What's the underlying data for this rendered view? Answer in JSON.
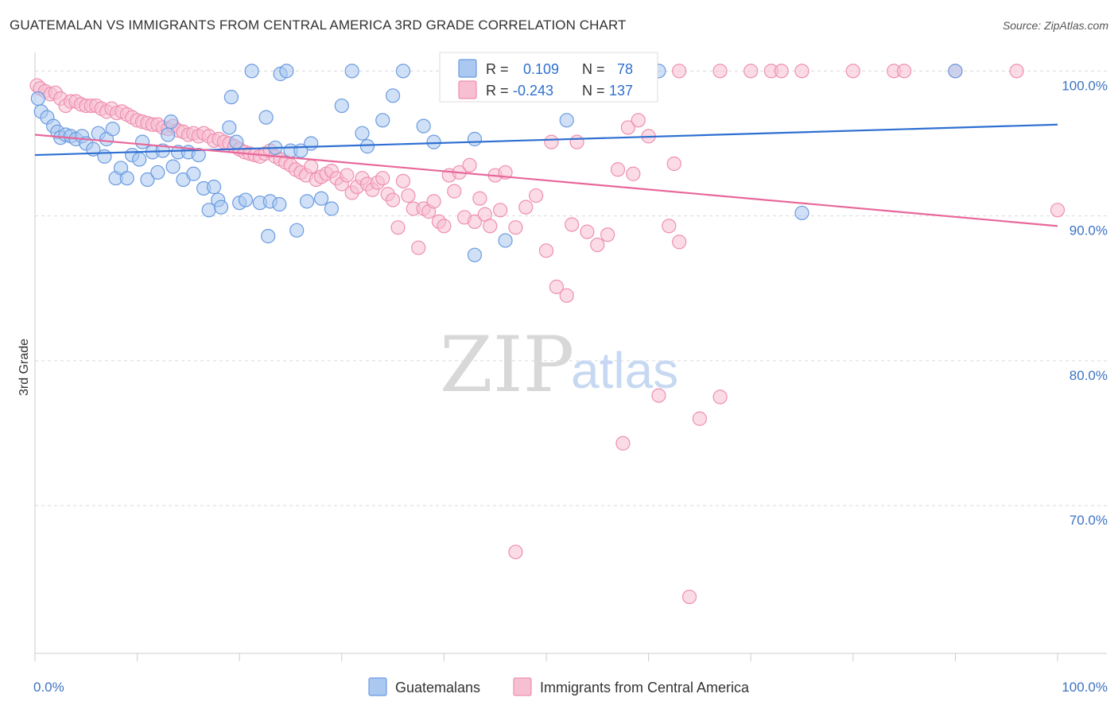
{
  "header": {
    "title": "GUATEMALAN VS IMMIGRANTS FROM CENTRAL AMERICA 3RD GRADE CORRELATION CHART",
    "source": "Source: ZipAtlas.com"
  },
  "watermark": {
    "zip": "ZIP",
    "atlas": "atlas"
  },
  "legend": {
    "rows": [
      {
        "r_label": "R =",
        "r_value": "0.109",
        "n_label": "N =",
        "n_value": "78"
      },
      {
        "r_label": "R =",
        "r_value": "-0.243",
        "n_label": "N =",
        "n_value": "137"
      }
    ]
  },
  "colors": {
    "blue_fill": "#aac8f0",
    "blue_stroke": "#6a9be0",
    "blue_line": "#2e6fd1",
    "pink_fill": "#f7bfd2",
    "pink_stroke": "#ee8fb0",
    "pink_line": "#e8679a",
    "value_text": "#2e6fd1",
    "grid": "#d9d9d9"
  },
  "chart_data": {
    "type": "scatter",
    "ylabel": "3rd Grade",
    "xlabel": "",
    "x_ticks": [
      "0.0%",
      "100.0%"
    ],
    "y_ticks": [
      "100.0%",
      "90.0%",
      "80.0%",
      "70.0%"
    ],
    "xlim": [
      0,
      100
    ],
    "ylim": [
      59.8,
      101.5
    ],
    "series": [
      {
        "name": "Guatemalans",
        "r": 0.109,
        "n": 78,
        "trend": [
          [
            0,
            94.2
          ],
          [
            100,
            96.3
          ]
        ],
        "points": [
          [
            0.3,
            98.1
          ],
          [
            0.6,
            97.2
          ],
          [
            1.2,
            96.8
          ],
          [
            1.8,
            96.2
          ],
          [
            2.2,
            95.8
          ],
          [
            2.5,
            95.4
          ],
          [
            3,
            95.6
          ],
          [
            3.5,
            95.5
          ],
          [
            4,
            95.3
          ],
          [
            4.6,
            95.5
          ],
          [
            5,
            95
          ],
          [
            5.7,
            94.6
          ],
          [
            6.2,
            95.7
          ],
          [
            6.8,
            94.1
          ],
          [
            7,
            95.3
          ],
          [
            7.6,
            96
          ],
          [
            7.9,
            92.6
          ],
          [
            8.4,
            93.3
          ],
          [
            9,
            92.6
          ],
          [
            9.5,
            94.2
          ],
          [
            10.2,
            93.9
          ],
          [
            10.5,
            95.1
          ],
          [
            11,
            92.5
          ],
          [
            11.5,
            94.4
          ],
          [
            12,
            93
          ],
          [
            12.5,
            94.5
          ],
          [
            13,
            95.6
          ],
          [
            13.3,
            96.5
          ],
          [
            13.5,
            93.4
          ],
          [
            14,
            94.4
          ],
          [
            14.5,
            92.5
          ],
          [
            15,
            94.4
          ],
          [
            15.5,
            92.9
          ],
          [
            16,
            94.2
          ],
          [
            16.5,
            91.9
          ],
          [
            17,
            90.4
          ],
          [
            17.5,
            92
          ],
          [
            17.9,
            91.1
          ],
          [
            18.2,
            90.6
          ],
          [
            19,
            96.1
          ],
          [
            19.2,
            98.2
          ],
          [
            19.7,
            95.1
          ],
          [
            20,
            90.9
          ],
          [
            20.6,
            91.1
          ],
          [
            21.2,
            100
          ],
          [
            22,
            90.9
          ],
          [
            22.6,
            96.8
          ],
          [
            22.8,
            88.6
          ],
          [
            23,
            91
          ],
          [
            23.5,
            94.7
          ],
          [
            23.9,
            90.8
          ],
          [
            24,
            99.8
          ],
          [
            24.6,
            100
          ],
          [
            25,
            94.5
          ],
          [
            25.6,
            89
          ],
          [
            26,
            94.5
          ],
          [
            26.6,
            91
          ],
          [
            27,
            95
          ],
          [
            28,
            91.2
          ],
          [
            29,
            90.5
          ],
          [
            30,
            97.6
          ],
          [
            31,
            100
          ],
          [
            32,
            95.7
          ],
          [
            32.5,
            94.8
          ],
          [
            34,
            96.6
          ],
          [
            35,
            98.3
          ],
          [
            36,
            100
          ],
          [
            38,
            96.2
          ],
          [
            39,
            95.1
          ],
          [
            43,
            95.3
          ],
          [
            43,
            87.3
          ],
          [
            46,
            88.3
          ],
          [
            52,
            96.6
          ],
          [
            60,
            100
          ],
          [
            61,
            100
          ],
          [
            75,
            90.2
          ],
          [
            90,
            100
          ]
        ]
      },
      {
        "name": "Immigrants from Central America",
        "r": -0.243,
        "n": 137,
        "trend": [
          [
            0,
            95.6
          ],
          [
            100,
            89.3
          ]
        ],
        "points": [
          [
            0.2,
            99
          ],
          [
            0.5,
            98.8
          ],
          [
            1,
            98.6
          ],
          [
            1.5,
            98.4
          ],
          [
            2,
            98.5
          ],
          [
            2.5,
            98.1
          ],
          [
            3,
            97.6
          ],
          [
            3.5,
            97.9
          ],
          [
            4,
            97.9
          ],
          [
            4.5,
            97.7
          ],
          [
            5,
            97.6
          ],
          [
            5.5,
            97.6
          ],
          [
            6,
            97.6
          ],
          [
            6.5,
            97.4
          ],
          [
            7,
            97.2
          ],
          [
            7.5,
            97.4
          ],
          [
            8,
            97.1
          ],
          [
            8.5,
            97.2
          ],
          [
            9,
            97
          ],
          [
            9.5,
            96.8
          ],
          [
            10,
            96.6
          ],
          [
            10.5,
            96.5
          ],
          [
            11,
            96.4
          ],
          [
            11.5,
            96.3
          ],
          [
            12,
            96.3
          ],
          [
            12.5,
            96.1
          ],
          [
            13,
            96
          ],
          [
            13.5,
            96.2
          ],
          [
            14,
            95.9
          ],
          [
            14.5,
            95.8
          ],
          [
            15,
            95.6
          ],
          [
            15.5,
            95.7
          ],
          [
            16,
            95.5
          ],
          [
            16.5,
            95.7
          ],
          [
            17,
            95.5
          ],
          [
            17.5,
            95.2
          ],
          [
            18,
            95.3
          ],
          [
            18.5,
            95.1
          ],
          [
            19,
            95
          ],
          [
            19.5,
            94.8
          ],
          [
            20,
            94.6
          ],
          [
            20.5,
            94.4
          ],
          [
            21,
            94.3
          ],
          [
            21.5,
            94.2
          ],
          [
            22,
            94.1
          ],
          [
            22.5,
            94.3
          ],
          [
            23,
            94.5
          ],
          [
            23.5,
            94.1
          ],
          [
            24,
            93.9
          ],
          [
            24.5,
            93.7
          ],
          [
            25,
            93.5
          ],
          [
            25.5,
            93.2
          ],
          [
            26,
            93
          ],
          [
            26.5,
            92.8
          ],
          [
            27,
            93.4
          ],
          [
            27.5,
            92.5
          ],
          [
            28,
            92.7
          ],
          [
            28.5,
            92.9
          ],
          [
            29,
            93.1
          ],
          [
            29.5,
            92.6
          ],
          [
            30,
            92.2
          ],
          [
            30.5,
            92.8
          ],
          [
            31,
            91.6
          ],
          [
            31.5,
            92
          ],
          [
            32,
            92.6
          ],
          [
            32.5,
            92.2
          ],
          [
            33,
            91.8
          ],
          [
            33.5,
            92.3
          ],
          [
            34,
            92.6
          ],
          [
            34.5,
            91.5
          ],
          [
            35,
            91.1
          ],
          [
            35.5,
            89.2
          ],
          [
            36,
            92.4
          ],
          [
            36.5,
            91.4
          ],
          [
            37,
            90.5
          ],
          [
            37.5,
            87.8
          ],
          [
            38,
            90.5
          ],
          [
            38.5,
            90.3
          ],
          [
            39,
            91
          ],
          [
            39.5,
            89.6
          ],
          [
            40,
            89.3
          ],
          [
            40.5,
            92.8
          ],
          [
            41,
            91.7
          ],
          [
            41.5,
            93
          ],
          [
            42,
            89.9
          ],
          [
            42.5,
            93.5
          ],
          [
            43,
            89.6
          ],
          [
            43.5,
            91.2
          ],
          [
            44,
            90.1
          ],
          [
            44.5,
            89.3
          ],
          [
            45,
            92.8
          ],
          [
            45.5,
            90.4
          ],
          [
            46,
            93
          ],
          [
            47,
            89.2
          ],
          [
            48,
            90.6
          ],
          [
            49,
            91.4
          ],
          [
            50,
            87.6
          ],
          [
            50.5,
            95.1
          ],
          [
            51,
            85.1
          ],
          [
            52,
            84.5
          ],
          [
            52.5,
            89.4
          ],
          [
            53,
            95.1
          ],
          [
            54,
            88.9
          ],
          [
            55,
            88
          ],
          [
            56,
            88.7
          ],
          [
            57,
            93.2
          ],
          [
            57.5,
            74.3
          ],
          [
            58,
            96.1
          ],
          [
            58.5,
            92.9
          ],
          [
            59,
            96.6
          ],
          [
            60,
            95.5
          ],
          [
            61,
            77.6
          ],
          [
            62,
            89.3
          ],
          [
            62.5,
            93.6
          ],
          [
            63,
            88.2
          ],
          [
            64,
            63.7
          ],
          [
            65,
            76
          ],
          [
            67,
            77.5
          ],
          [
            47,
            66.8
          ],
          [
            48,
            100
          ],
          [
            49,
            100
          ],
          [
            50,
            100
          ],
          [
            55,
            100
          ],
          [
            60,
            100
          ],
          [
            63,
            100
          ],
          [
            67,
            100
          ],
          [
            70,
            100
          ],
          [
            72,
            100
          ],
          [
            73,
            100
          ],
          [
            75,
            100
          ],
          [
            80,
            100
          ],
          [
            84,
            100
          ],
          [
            85,
            100
          ],
          [
            90,
            100
          ],
          [
            96,
            100
          ],
          [
            100,
            90.4
          ]
        ]
      }
    ]
  },
  "bottom_legend": {
    "items": [
      {
        "label": "Guatemalans"
      },
      {
        "label": "Immigrants from Central America"
      }
    ]
  }
}
